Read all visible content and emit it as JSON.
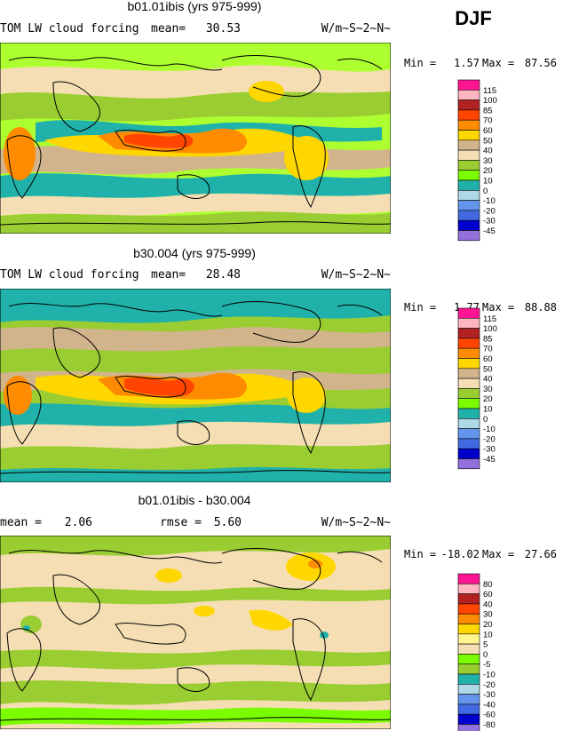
{
  "season": "DJF",
  "chart_data": [
    {
      "type": "heatmap",
      "title": "b01.01ibis (yrs 975-999)",
      "variable": "TOM LW cloud forcing",
      "mean_label": "mean=",
      "mean_value": "30.53",
      "units": "W/m~S~2~N~",
      "min_label": "Min =",
      "min_value": "1.57",
      "max_label": "Max =",
      "max_value": "87.56",
      "colorbar": {
        "levels": [
          "115",
          "100",
          "85",
          "70",
          "60",
          "50",
          "40",
          "30",
          "20",
          "10",
          "0",
          "-10",
          "-20",
          "-30",
          "-45"
        ],
        "colors": [
          "#ff1493",
          "#ffb6c1",
          "#b22222",
          "#ff4500",
          "#ff8c00",
          "#ffd700",
          "#d2b48c",
          "#f5deb3",
          "#9acd32",
          "#7cfc00",
          "#20b2aa",
          "#add8e6",
          "#6495ed",
          "#4169e1",
          "#0000cd",
          "#9370db"
        ]
      },
      "map_palette": {
        "ocean_bg": "#adff2f",
        "zonal": [
          "#f5deb3",
          "#9acd32",
          "#20b2aa",
          "#ffd700",
          "#d2b48c",
          "#ff8c00",
          "#ff4500"
        ]
      }
    },
    {
      "type": "heatmap",
      "title": "b30.004 (yrs 975-999)",
      "variable": "TOM LW cloud forcing",
      "mean_label": "mean=",
      "mean_value": "28.48",
      "units": "W/m~S~2~N~",
      "min_label": "Min =",
      "min_value": "1.77",
      "max_label": "Max =",
      "max_value": "88.88",
      "colorbar": {
        "levels": [
          "115",
          "100",
          "85",
          "70",
          "60",
          "50",
          "40",
          "30",
          "20",
          "10",
          "0",
          "-10",
          "-20",
          "-30",
          "-45"
        ],
        "colors": [
          "#ff1493",
          "#ffb6c1",
          "#b22222",
          "#ff4500",
          "#ff8c00",
          "#ffd700",
          "#d2b48c",
          "#f5deb3",
          "#9acd32",
          "#7cfc00",
          "#20b2aa",
          "#add8e6",
          "#6495ed",
          "#4169e1",
          "#0000cd",
          "#9370db"
        ]
      },
      "map_palette": {
        "ocean_bg": "#9acd32",
        "zonal": [
          "#f5deb3",
          "#9acd32",
          "#20b2aa",
          "#ffd700",
          "#d2b48c",
          "#ff8c00",
          "#ff4500"
        ]
      }
    },
    {
      "type": "heatmap",
      "title": "b01.01ibis - b30.004",
      "mean_label": "mean =",
      "mean_value": "2.06",
      "rmse_label": "rmse =",
      "rmse_value": "5.60",
      "units": "W/m~S~2~N~",
      "min_label": "Min =",
      "min_value": "-18.02",
      "max_label": "Max =",
      "max_value": "27.66",
      "colorbar": {
        "levels": [
          "80",
          "60",
          "40",
          "30",
          "20",
          "10",
          "5",
          "0",
          "-5",
          "-10",
          "-20",
          "-30",
          "-40",
          "-60",
          "-80"
        ],
        "colors": [
          "#ff1493",
          "#ffb6c1",
          "#b22222",
          "#ff4500",
          "#ff8c00",
          "#ffd700",
          "#fff68f",
          "#f5deb3",
          "#7cfc00",
          "#9acd32",
          "#20b2aa",
          "#add8e6",
          "#6495ed",
          "#4169e1",
          "#0000cd",
          "#9370db"
        ]
      },
      "map_palette": {
        "ocean_bg": "#f5deb3",
        "zonal": [
          "#f5deb3",
          "#9acd32",
          "#7cfc00",
          "#ffd700",
          "#20b2aa"
        ]
      }
    }
  ]
}
